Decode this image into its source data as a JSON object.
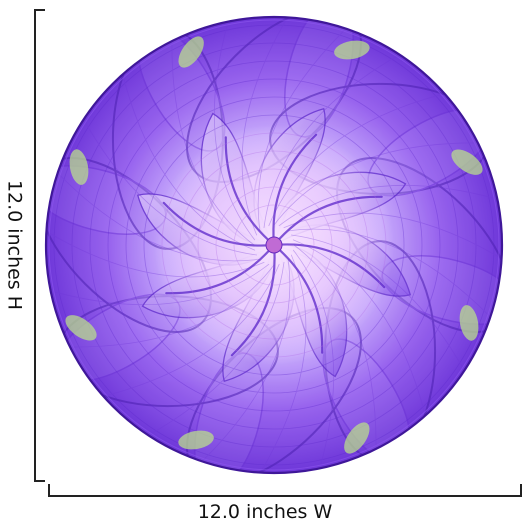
{
  "colors": {
    "primary": "#8a52e8",
    "deep": "#4b1fb0",
    "light": "#e7d9ff",
    "accent": "#b9dc8c",
    "center": "#f4d6ff",
    "line": "#222222"
  },
  "dimensions": {
    "width_label": "12.0 inches W",
    "height_label": "12.0 inches H"
  },
  "icons": {
    "artwork": "fractal-flower-icon"
  }
}
